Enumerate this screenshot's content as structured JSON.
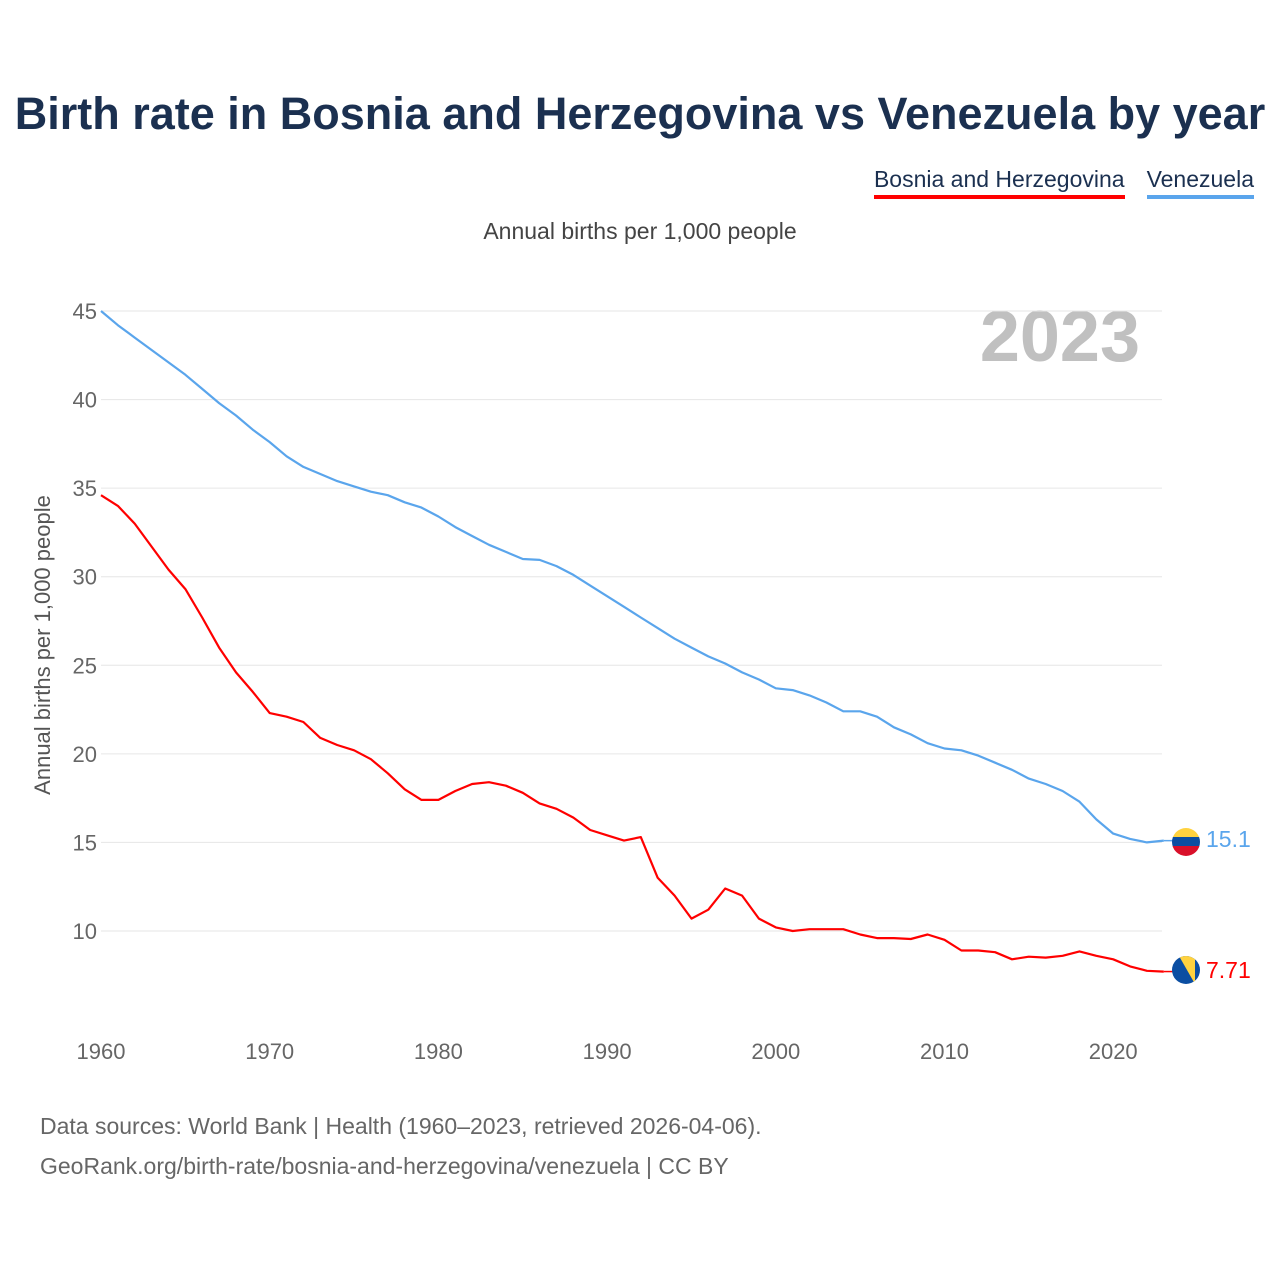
{
  "title": "Birth rate in Bosnia and Herzegovina vs Venezuela by year",
  "subtitle": "Annual births per 1,000 people",
  "year_label": "2023",
  "source_line1": "Data sources: World Bank | Health (1960–2023, retrieved 2026-04-06).",
  "source_line2": "GeoRank.org/birth-rate/bosnia-and-herzegovina/venezuela | CC BY",
  "chart_data": {
    "type": "line",
    "title": "Birth rate in Bosnia and Herzegovina vs Venezuela by year",
    "xlabel": "",
    "ylabel": "Annual births per 1,000 people",
    "xlim": [
      1960,
      2023
    ],
    "ylim": [
      5.3,
      45
    ],
    "x_ticks": [
      1960,
      1970,
      1980,
      1990,
      2000,
      2010,
      2020
    ],
    "y_ticks": [
      10,
      15,
      20,
      25,
      30,
      35,
      40,
      45
    ],
    "grid": true,
    "legend_position": "top-right",
    "series": [
      {
        "name": "Bosnia and Herzegovina",
        "color": "#ff0000",
        "end_label": "7.71",
        "values": [
          34.6,
          34.0,
          33.0,
          31.7,
          30.4,
          29.3,
          27.7,
          26.0,
          24.6,
          23.5,
          22.3,
          22.1,
          21.8,
          20.9,
          20.5,
          20.2,
          19.7,
          18.9,
          18.0,
          17.4,
          17.4,
          17.9,
          18.3,
          18.4,
          18.2,
          17.8,
          17.2,
          16.9,
          16.4,
          15.7,
          15.4,
          15.1,
          15.3,
          13.0,
          12.0,
          10.7,
          11.2,
          12.4,
          12.0,
          10.7,
          10.2,
          10.0,
          10.1,
          10.1,
          10.1,
          9.8,
          9.6,
          9.6,
          9.55,
          9.8,
          9.5,
          8.9,
          8.9,
          8.8,
          8.4,
          8.55,
          8.5,
          8.6,
          8.85,
          8.6,
          8.4,
          8.0,
          7.75,
          7.71
        ]
      },
      {
        "name": "Venezuela",
        "color": "#5aa5ec",
        "end_label": "15.1",
        "values": [
          45.0,
          44.2,
          43.5,
          42.8,
          42.1,
          41.4,
          40.6,
          39.8,
          39.1,
          38.3,
          37.6,
          36.8,
          36.2,
          35.8,
          35.4,
          35.1,
          34.8,
          34.6,
          34.2,
          33.9,
          33.4,
          32.8,
          32.3,
          31.8,
          31.4,
          31.0,
          30.95,
          30.6,
          30.1,
          29.5,
          28.9,
          28.3,
          27.7,
          27.1,
          26.5,
          26.0,
          25.5,
          25.1,
          24.6,
          24.2,
          23.7,
          23.6,
          23.3,
          22.9,
          22.4,
          22.4,
          22.1,
          21.5,
          21.1,
          20.6,
          20.3,
          20.2,
          19.9,
          19.5,
          19.1,
          18.6,
          18.3,
          17.9,
          17.3,
          16.3,
          15.5,
          15.2,
          15.0,
          15.1
        ]
      }
    ]
  }
}
